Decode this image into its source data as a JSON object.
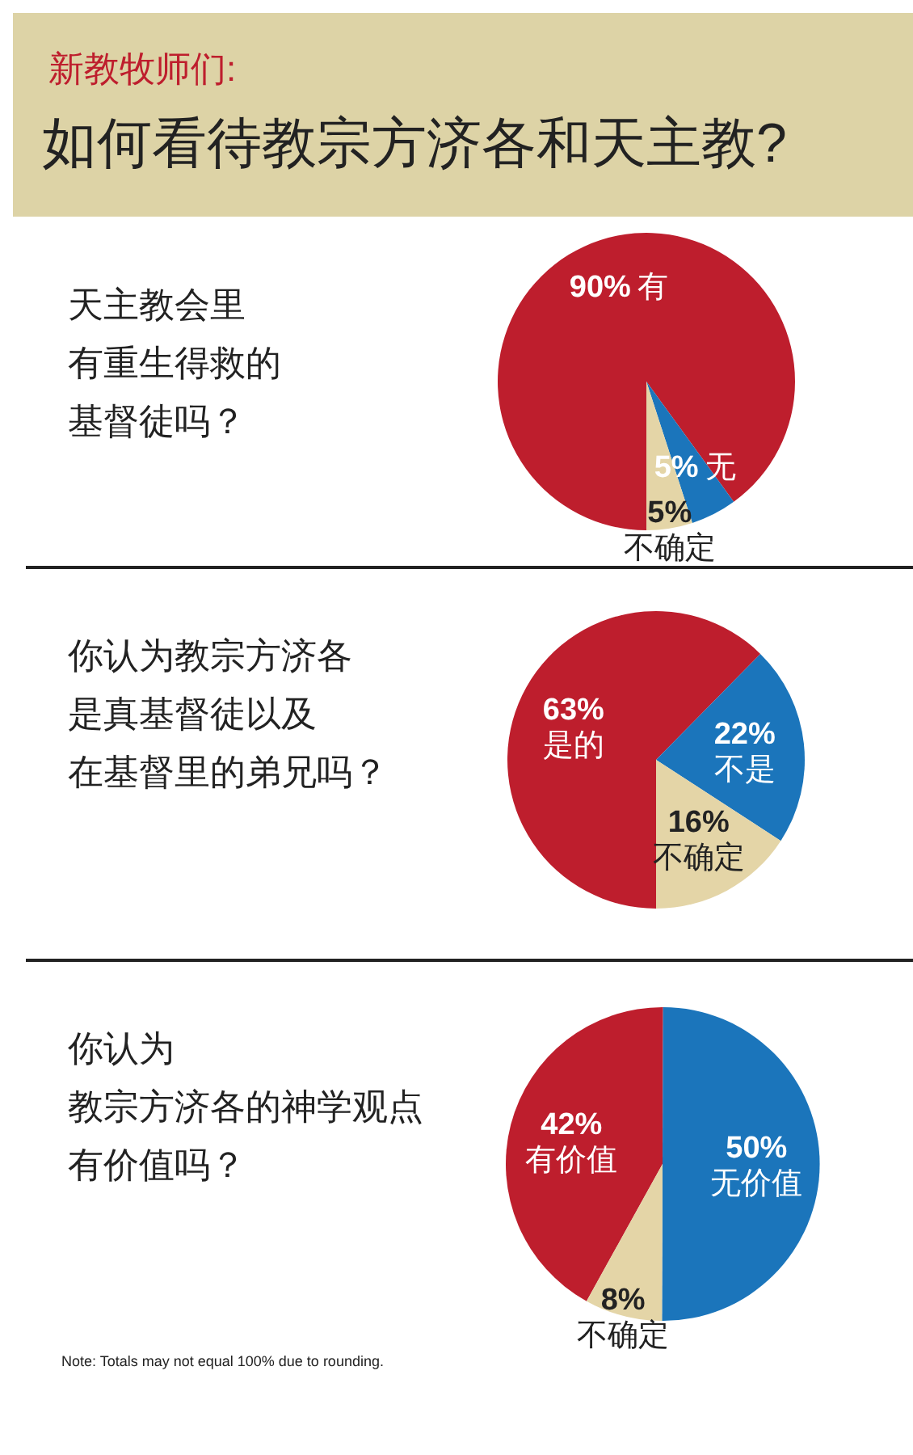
{
  "chart_data": [
    {
      "type": "other",
      "subtitle": "新教牧师们:",
      "title": "如何看待教宗方济各和天主教?"
    },
    {
      "type": "pie",
      "title": "天主教会里有重生得救的基督徒吗？",
      "categories": [
        "有",
        "无",
        "不确定"
      ],
      "values": [
        90,
        5,
        5
      ],
      "colors": [
        "#be1e2d",
        "#1b75bb",
        "#e4d5a7"
      ],
      "value_labels": [
        "90%",
        "5%",
        "5%"
      ]
    },
    {
      "type": "pie",
      "title": "你认为教宗方济各是真基督徒以及在基督里的弟兄吗？",
      "categories": [
        "是的",
        "不是",
        "不确定"
      ],
      "values": [
        63,
        22,
        16
      ],
      "colors": [
        "#be1e2d",
        "#1b75bb",
        "#e4d5a7"
      ],
      "value_labels": [
        "63%",
        "22%",
        "16%"
      ]
    },
    {
      "type": "pie",
      "title": "你认为教宗方济各的神学观点有价值吗？",
      "categories": [
        "有价值",
        "无价值",
        "不确定"
      ],
      "values": [
        42,
        50,
        8
      ],
      "colors": [
        "#be1e2d",
        "#1b75bb",
        "#e4d5a7"
      ],
      "value_labels": [
        "42%",
        "50%",
        "8%"
      ],
      "annotations": [
        "Note: Totals may not equal 100% due to rounding."
      ]
    }
  ]
}
